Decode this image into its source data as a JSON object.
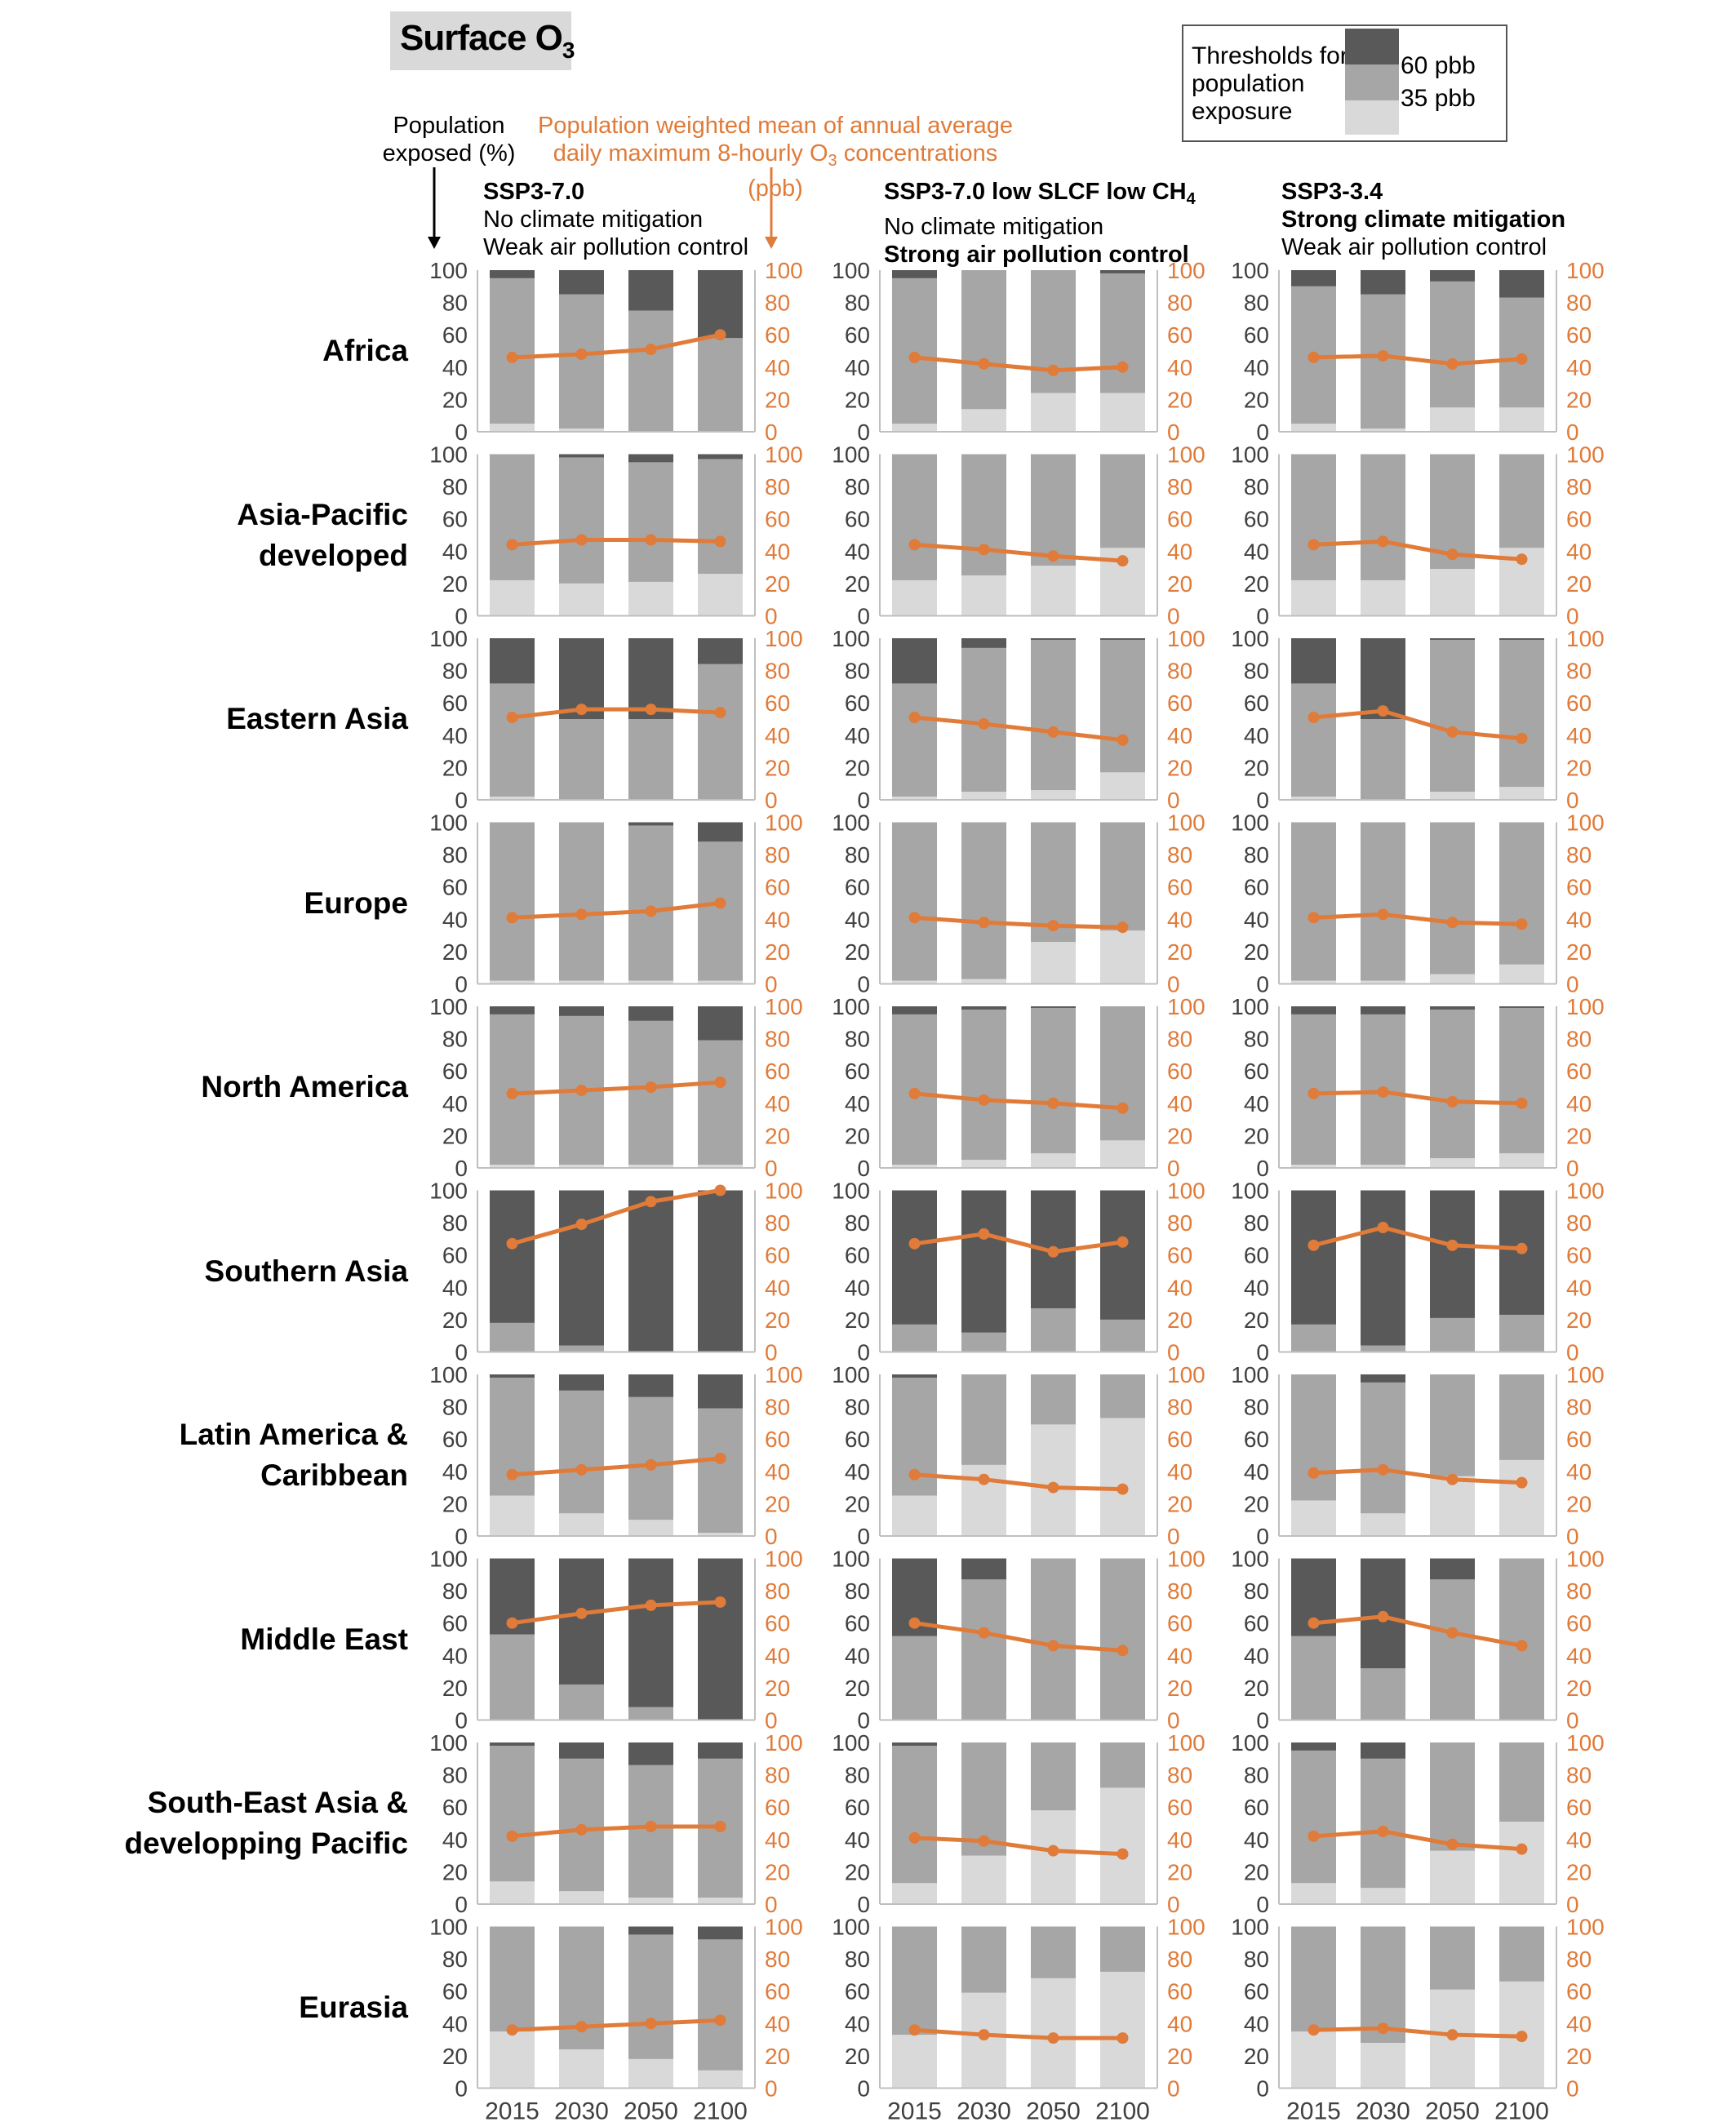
{
  "title": {
    "main": "Surface O",
    "sub": "3"
  },
  "legend": {
    "title": "Thresholds for population exposure",
    "labels": [
      "60 pbb",
      "35 pbb"
    ],
    "colors": {
      "above60": "#595959",
      "between": "#a6a6a6",
      "below35": "#d9d9d9"
    }
  },
  "axis_labels": {
    "left": "Population exposed (%)",
    "right_pre": "Population weighted mean of annual average daily maximum 8-hourly O",
    "right_sub": "3",
    "right_post": " concentrations (ppb)"
  },
  "scenarios": [
    {
      "name": "SSP3-7.0",
      "name_sub": "",
      "climate": "No climate mitigation",
      "pollution": "Weak air pollution control"
    },
    {
      "name": "SSP3-7.0 low SLCF low CH",
      "name_sub": "4",
      "climate": "No climate mitigation",
      "pollution": "Strong air pollution control"
    },
    {
      "name": "SSP3-3.4",
      "name_sub": "",
      "climate": "Strong climate mitigation",
      "pollution": "Weak air pollution control"
    }
  ],
  "ticks": [
    "0",
    "20",
    "40",
    "60",
    "80",
    "100"
  ],
  "chart_data": {
    "type": "bar",
    "subtype": "stacked bar with overlaid line, small multiples",
    "categories": [
      "2015",
      "2030",
      "2050",
      "2100"
    ],
    "left_axis": {
      "label": "Population exposed (%)",
      "ylim": [
        0,
        100
      ]
    },
    "right_axis": {
      "label": "Population weighted mean of annual average daily maximum 8-hourly O3 concentrations (ppb)",
      "ylim": [
        0,
        100
      ]
    },
    "stack_order": [
      "below35",
      "between",
      "above60"
    ],
    "colors": {
      "above60": "#595959",
      "between": "#a6a6a6",
      "below35": "#d9d9d9",
      "line": "#e07b39"
    },
    "regions": [
      {
        "name": "Africa",
        "scenarios": [
          {
            "below35": [
              5,
              2,
              0,
              0
            ],
            "above60": [
              5,
              15,
              25,
              42
            ],
            "line": [
              46,
              48,
              51,
              60
            ]
          },
          {
            "below35": [
              5,
              14,
              24,
              24
            ],
            "above60": [
              5,
              0,
              0,
              2
            ],
            "line": [
              46,
              42,
              38,
              40
            ]
          },
          {
            "below35": [
              5,
              2,
              15,
              15
            ],
            "above60": [
              10,
              15,
              7,
              17
            ],
            "line": [
              46,
              47,
              42,
              45
            ]
          }
        ]
      },
      {
        "name": "Asia-Pacific developed",
        "scenarios": [
          {
            "below35": [
              22,
              20,
              21,
              26
            ],
            "above60": [
              0,
              2,
              5,
              3
            ],
            "line": [
              44,
              47,
              47,
              46
            ]
          },
          {
            "below35": [
              22,
              25,
              31,
              42
            ],
            "above60": [
              0,
              0,
              0,
              0
            ],
            "line": [
              44,
              41,
              37,
              34
            ]
          },
          {
            "below35": [
              22,
              22,
              29,
              42
            ],
            "above60": [
              0,
              0,
              0,
              0
            ],
            "line": [
              44,
              46,
              38,
              35
            ]
          }
        ]
      },
      {
        "name": "Eastern Asia",
        "scenarios": [
          {
            "below35": [
              2,
              0,
              0,
              0
            ],
            "above60": [
              28,
              50,
              50,
              16
            ],
            "line": [
              51,
              56,
              56,
              54
            ]
          },
          {
            "below35": [
              2,
              5,
              6,
              17
            ],
            "above60": [
              28,
              6,
              1,
              1
            ],
            "line": [
              51,
              47,
              42,
              37
            ]
          },
          {
            "below35": [
              2,
              0,
              5,
              8
            ],
            "above60": [
              28,
              50,
              1,
              1
            ],
            "line": [
              51,
              55,
              42,
              38
            ]
          }
        ]
      },
      {
        "name": "Europe",
        "scenarios": [
          {
            "below35": [
              2,
              2,
              2,
              2
            ],
            "above60": [
              0,
              0,
              2,
              12
            ],
            "line": [
              41,
              43,
              45,
              50
            ]
          },
          {
            "below35": [
              2,
              3,
              26,
              33
            ],
            "above60": [
              0,
              0,
              0,
              0
            ],
            "line": [
              41,
              38,
              36,
              35
            ]
          },
          {
            "below35": [
              2,
              2,
              6,
              12
            ],
            "above60": [
              0,
              0,
              0,
              0
            ],
            "line": [
              41,
              43,
              38,
              37
            ]
          }
        ]
      },
      {
        "name": "North America",
        "scenarios": [
          {
            "below35": [
              2,
              2,
              2,
              2
            ],
            "above60": [
              5,
              6,
              9,
              21
            ],
            "line": [
              46,
              48,
              50,
              53
            ]
          },
          {
            "below35": [
              2,
              5,
              9,
              17
            ],
            "above60": [
              5,
              2,
              1,
              0
            ],
            "line": [
              46,
              42,
              40,
              37
            ]
          },
          {
            "below35": [
              2,
              2,
              6,
              9
            ],
            "above60": [
              5,
              5,
              2,
              1
            ],
            "line": [
              46,
              47,
              41,
              40
            ]
          }
        ]
      },
      {
        "name": "Southern Asia",
        "scenarios": [
          {
            "below35": [
              0,
              0,
              0,
              0
            ],
            "between": [
              18,
              4,
              0,
              0
            ],
            "above60": [
              82,
              96,
              100,
              100
            ],
            "line": [
              67,
              79,
              93,
              100
            ]
          },
          {
            "below35": [
              0,
              0,
              0,
              0
            ],
            "between": [
              17,
              12,
              27,
              20
            ],
            "above60": [
              83,
              88,
              73,
              80
            ],
            "line": [
              67,
              73,
              62,
              68
            ]
          },
          {
            "below35": [
              0,
              0,
              0,
              0
            ],
            "between": [
              17,
              4,
              21,
              23
            ],
            "above60": [
              83,
              96,
              79,
              77
            ],
            "line": [
              66,
              77,
              66,
              64
            ]
          }
        ]
      },
      {
        "name": "Latin America & Caribbean",
        "scenarios": [
          {
            "below35": [
              25,
              14,
              10,
              2
            ],
            "above60": [
              2,
              10,
              14,
              21
            ],
            "line": [
              38,
              41,
              44,
              48
            ]
          },
          {
            "below35": [
              25,
              44,
              69,
              73
            ],
            "above60": [
              2,
              0,
              0,
              0
            ],
            "line": [
              38,
              35,
              30,
              29
            ]
          },
          {
            "below35": [
              22,
              14,
              37,
              47
            ],
            "above60": [
              0,
              5,
              0,
              0
            ],
            "line": [
              39,
              41,
              35,
              33
            ]
          }
        ]
      },
      {
        "name": "Middle East",
        "scenarios": [
          {
            "below35": [
              0,
              0,
              0,
              0
            ],
            "between": [
              53,
              22,
              8,
              0
            ],
            "above60": [
              47,
              78,
              92,
              100
            ],
            "line": [
              60,
              66,
              71,
              73
            ]
          },
          {
            "below35": [
              0,
              0,
              0,
              0
            ],
            "between": [
              52,
              87,
              100,
              100
            ],
            "above60": [
              48,
              13,
              0,
              0
            ],
            "line": [
              60,
              54,
              46,
              43
            ]
          },
          {
            "below35": [
              0,
              0,
              0,
              0
            ],
            "between": [
              52,
              32,
              87,
              100
            ],
            "above60": [
              48,
              68,
              13,
              0
            ],
            "line": [
              60,
              64,
              54,
              46
            ]
          }
        ]
      },
      {
        "name": "South-East Asia & developping Pacific",
        "scenarios": [
          {
            "below35": [
              14,
              8,
              4,
              4
            ],
            "above60": [
              2,
              10,
              14,
              10
            ],
            "line": [
              42,
              46,
              48,
              48
            ]
          },
          {
            "below35": [
              13,
              30,
              58,
              72
            ],
            "above60": [
              2,
              0,
              0,
              0
            ],
            "line": [
              41,
              39,
              33,
              31
            ]
          },
          {
            "below35": [
              13,
              10,
              33,
              51
            ],
            "above60": [
              5,
              10,
              0,
              0
            ],
            "line": [
              42,
              45,
              37,
              34
            ]
          }
        ]
      },
      {
        "name": "Eurasia",
        "scenarios": [
          {
            "below35": [
              35,
              24,
              18,
              11
            ],
            "above60": [
              0,
              0,
              5,
              8
            ],
            "line": [
              36,
              38,
              40,
              42
            ]
          },
          {
            "below35": [
              33,
              59,
              68,
              72
            ],
            "above60": [
              0,
              0,
              0,
              0
            ],
            "line": [
              36,
              33,
              31,
              31
            ]
          },
          {
            "below35": [
              35,
              28,
              61,
              66
            ],
            "above60": [
              0,
              0,
              0,
              0
            ],
            "line": [
              36,
              37,
              33,
              32
            ]
          }
        ]
      }
    ]
  }
}
